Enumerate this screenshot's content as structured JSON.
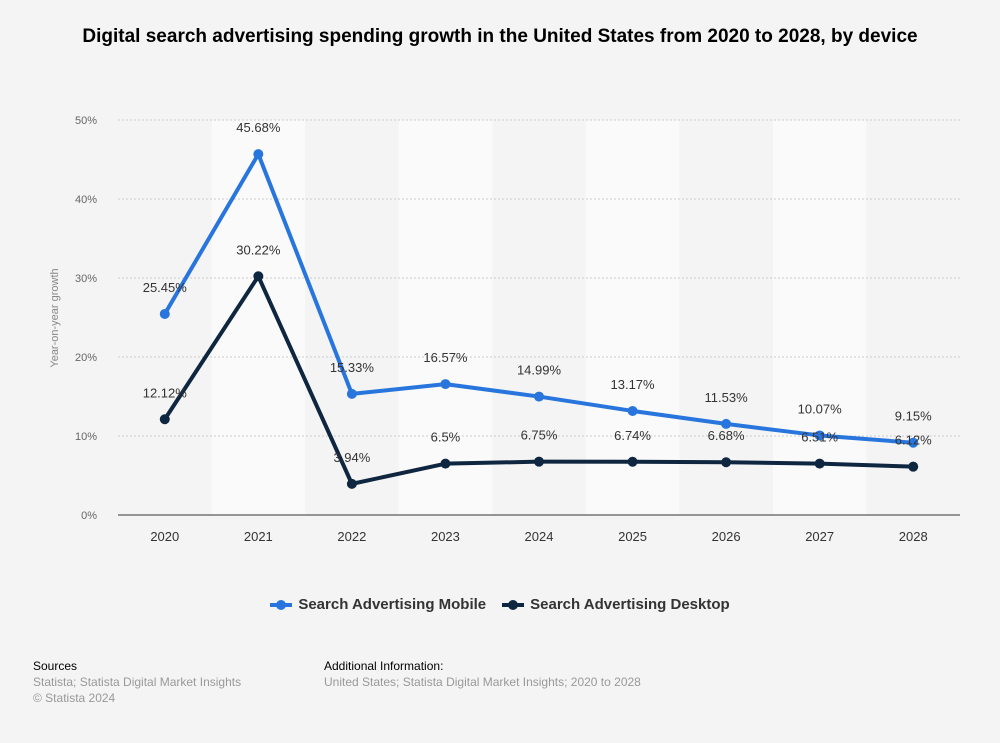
{
  "title": "Digital search advertising spending growth in the United States from 2020 to 2028, by device",
  "chart_data": {
    "type": "line",
    "title": "Digital search advertising spending growth in the United States from 2020 to 2028, by device",
    "xlabel": "",
    "ylabel": "Year-on-year growth",
    "categories": [
      "2020",
      "2021",
      "2022",
      "2023",
      "2024",
      "2025",
      "2026",
      "2027",
      "2028"
    ],
    "ylim": [
      0,
      50
    ],
    "yticks": [
      "0%",
      "10%",
      "20%",
      "30%",
      "40%",
      "50%"
    ],
    "grid": true,
    "legend": "bottom",
    "series": [
      {
        "name": "Search Advertising Mobile",
        "color": "#2876dd",
        "values": [
          25.45,
          45.68,
          15.33,
          16.57,
          14.99,
          13.17,
          11.53,
          10.07,
          9.15
        ],
        "labels": [
          "25.45%",
          "45.68%",
          "15.33%",
          "16.57%",
          "14.99%",
          "13.17%",
          "11.53%",
          "10.07%",
          "9.15%"
        ]
      },
      {
        "name": "Search Advertising Desktop",
        "color": "#0f2640",
        "values": [
          12.12,
          30.22,
          3.94,
          6.5,
          6.75,
          6.74,
          6.68,
          6.51,
          6.12
        ],
        "labels": [
          "12.12%",
          "30.22%",
          "3.94%",
          "6.5%",
          "6.75%",
          "6.74%",
          "6.68%",
          "6.51%",
          "6.12%"
        ]
      }
    ]
  },
  "footer": {
    "sources_label": "Sources",
    "sources": "Statista; Statista Digital Market Insights",
    "copyright": "© Statista 2024",
    "info_label": "Additional Information:",
    "info": "United States; Statista Digital Market Insights; 2020 to 2028"
  }
}
